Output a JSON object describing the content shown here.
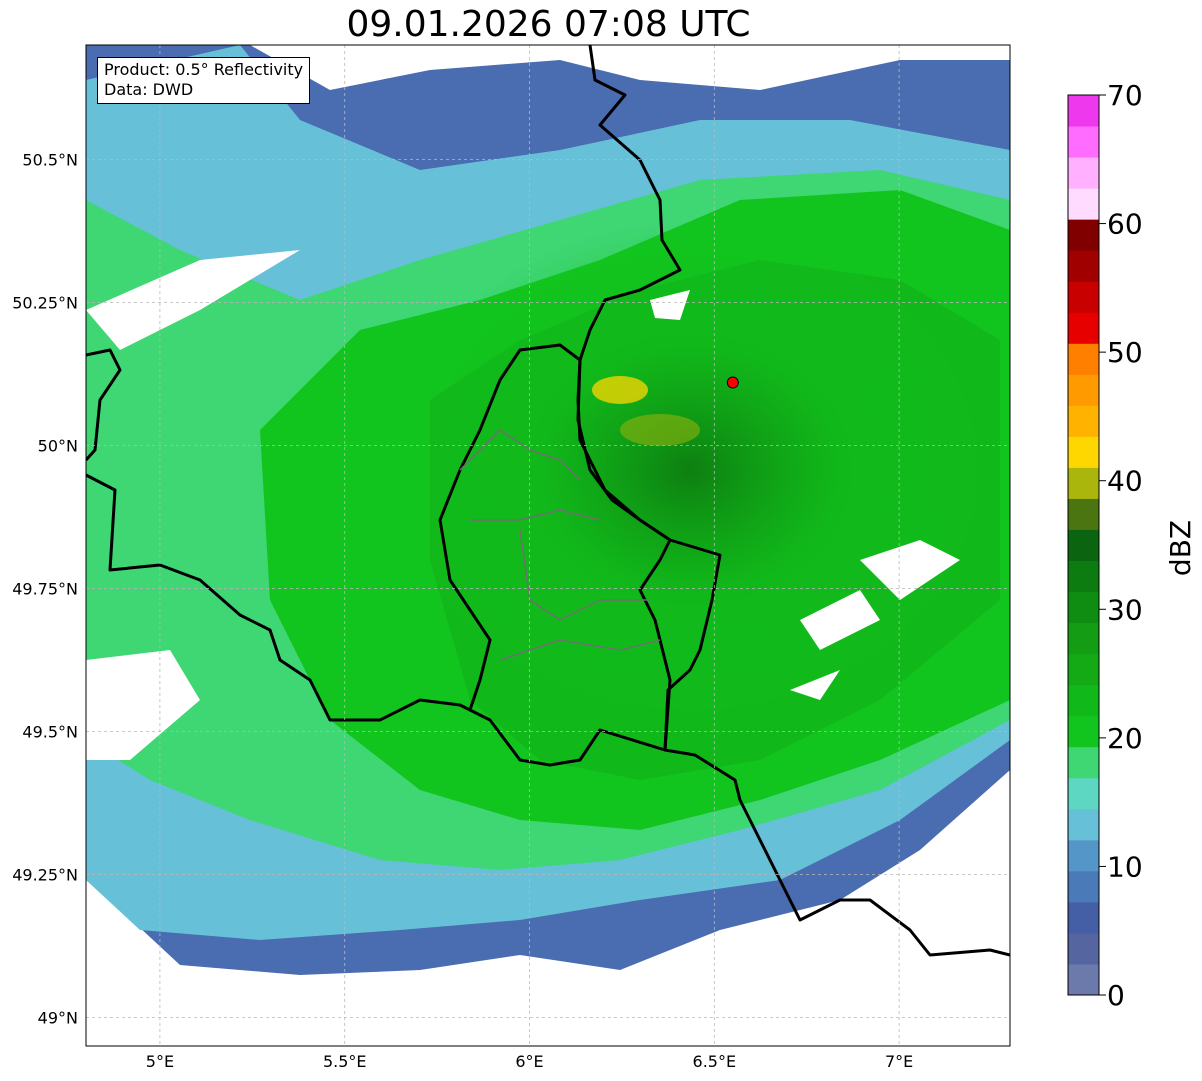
{
  "title": "09.01.2026 07:08 UTC",
  "info": {
    "product": "Product: 0.5° Reflectivity",
    "data": "Data: DWD"
  },
  "map": {
    "lon_range": [
      4.8,
      7.3
    ],
    "lat_range": [
      48.95,
      50.7
    ],
    "lon_ticks": [
      {
        "value": 5.0,
        "label": "5°E"
      },
      {
        "value": 5.5,
        "label": "5.5°E"
      },
      {
        "value": 6.0,
        "label": "6°E"
      },
      {
        "value": 6.5,
        "label": "6.5°E"
      },
      {
        "value": 7.0,
        "label": "7°E"
      }
    ],
    "lat_ticks": [
      {
        "value": 49.0,
        "label": "49°N"
      },
      {
        "value": 49.25,
        "label": "49.25°N"
      },
      {
        "value": 49.5,
        "label": "49.5°N"
      },
      {
        "value": 49.75,
        "label": "49.75°N"
      },
      {
        "value": 50.0,
        "label": "50°N"
      },
      {
        "value": 50.25,
        "label": "50.25°N"
      },
      {
        "value": 50.5,
        "label": "50.5°N"
      }
    ],
    "gridlines": true,
    "radar_site": {
      "lon": 6.55,
      "lat": 50.11
    }
  },
  "colorbar": {
    "label": "dBZ",
    "min": 0,
    "max": 70,
    "ticks": [
      "0",
      "10",
      "20",
      "30",
      "40",
      "50",
      "60",
      "70"
    ],
    "colors": [
      "#6b7aab",
      "#5465a0",
      "#445fa5",
      "#4a7ab8",
      "#5596c8",
      "#66c0d8",
      "#5dd6c2",
      "#3fd674",
      "#12c41e",
      "#11b81a",
      "#14aa16",
      "#139c14",
      "#0e8d12",
      "#0d7c10",
      "#0b6410",
      "#4b7511",
      "#aab60c",
      "#ffd700",
      "#ffb300",
      "#ff9a00",
      "#ff7f00",
      "#e60000",
      "#c80000",
      "#a00000",
      "#800000",
      "#ffdcff",
      "#ffb0ff",
      "#ff6cff",
      "#ee38ee"
    ]
  }
}
